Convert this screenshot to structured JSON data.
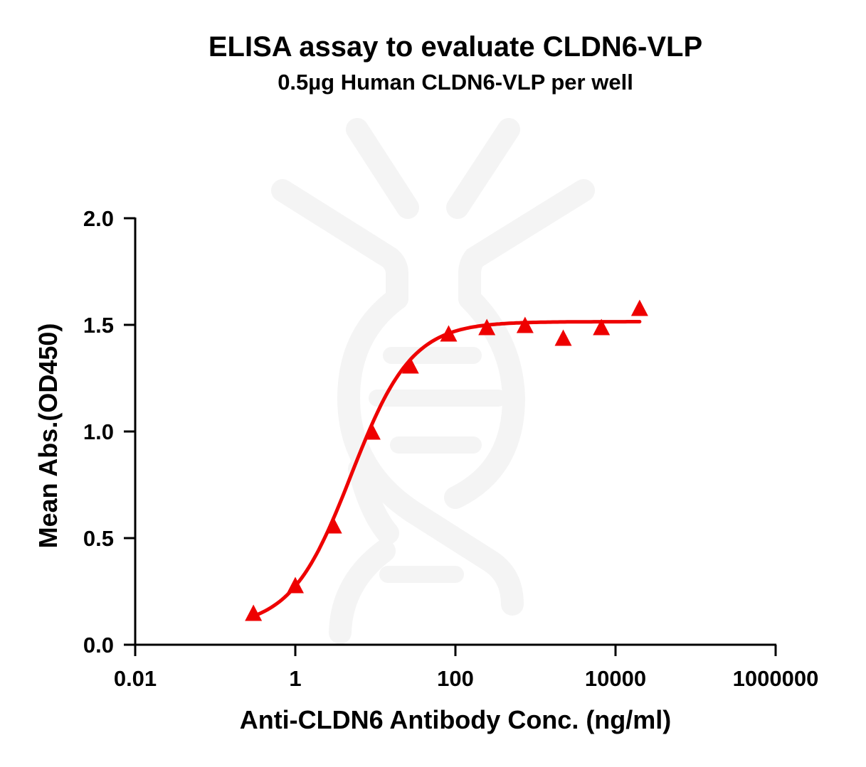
{
  "header": {
    "title": "ELISA assay to evaluate CLDN6-VLP",
    "subtitle": "0.5µg Human CLDN6-VLP per well"
  },
  "axes": {
    "xlabel": "Anti-CLDN6 Antibody Conc. (ng/ml)",
    "ylabel": "Mean Abs.(OD450)"
  },
  "colors": {
    "series": "#ee0000",
    "axis": "#000000",
    "watermark": "#f4f4f4"
  },
  "chart_data": {
    "type": "scatter",
    "title": "ELISA assay to evaluate CLDN6-VLP",
    "subtitle": "0.5µg Human CLDN6-VLP per well",
    "xlabel": "Anti-CLDN6 Antibody Conc. (ng/ml)",
    "ylabel": "Mean Abs.(OD450)",
    "xscale": "log",
    "xlim": [
      0.01,
      1000000
    ],
    "ylim": [
      0,
      2.0
    ],
    "x_ticks": [
      0.01,
      1,
      100,
      10000,
      1000000
    ],
    "x_tick_labels": [
      "0.01",
      "1",
      "100",
      "10000",
      "1000000"
    ],
    "y_ticks": [
      0.0,
      0.5,
      1.0,
      1.5,
      2.0
    ],
    "y_tick_labels": [
      "0.0",
      "0.5",
      "1.0",
      "1.5",
      "2.0"
    ],
    "grid": false,
    "legend": null,
    "series": [
      {
        "name": "Human CLDN6-VLP",
        "marker": "triangle",
        "color": "#ee0000",
        "x": [
          0.3,
          1.0,
          3.0,
          9.1,
          27.4,
          82.3,
          247,
          741,
          2222,
          6667,
          20000
        ],
        "y": [
          0.15,
          0.28,
          0.56,
          1.0,
          1.31,
          1.46,
          1.49,
          1.5,
          1.44,
          1.49,
          1.58
        ]
      }
    ],
    "fit": {
      "model": "4PL",
      "bottom": 0.08,
      "top": 1.515,
      "ec50": 5.0,
      "hill": 1.15,
      "x_range": [
        0.3,
        20000
      ]
    }
  }
}
